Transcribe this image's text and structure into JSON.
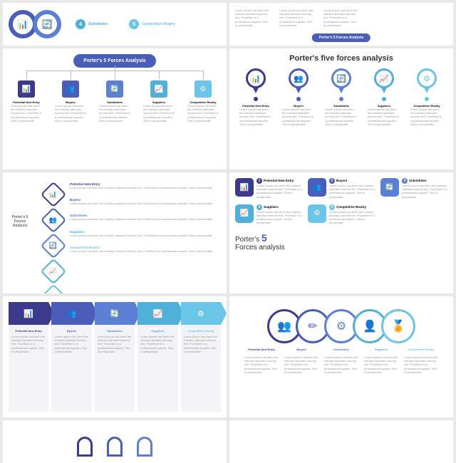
{
  "colors": {
    "c1": "#3d3a8c",
    "c2": "#4a5db8",
    "c3": "#5b7fd4",
    "c4": "#4fb0d9",
    "c5": "#6bc5e8"
  },
  "lorem": "Lorem ipsum has been the industry standard dummy text. PowSlant is a professional supplier. Sed ut perspiciatis",
  "forces": [
    "Potential New Entry",
    "Buyers",
    "Substitutes",
    "Suppliers",
    "Competitive Rivalry"
  ],
  "r1": {
    "n4": "4",
    "l4": "Substitutes",
    "n5": "5",
    "l5": "Competitive Rivalry",
    "badge": "Porter's 5 Forces Analysis"
  },
  "r2": {
    "title": "Porter's 5 Forces Analysis"
  },
  "r3": {
    "title": "Porter's five forces analysis"
  },
  "r4b": {
    "t1": "Porter's",
    "t2": "Forces analysis",
    "five": "5"
  },
  "icons": [
    "📊",
    "👥",
    "🔄",
    "📈",
    "⚙"
  ]
}
